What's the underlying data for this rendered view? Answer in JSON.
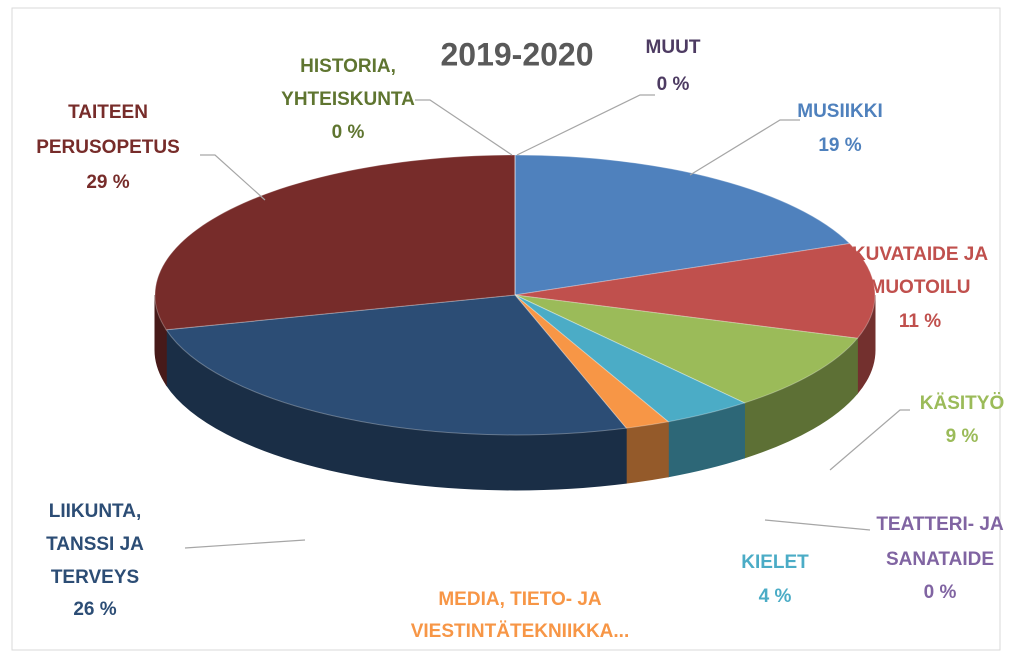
{
  "chart_data": {
    "type": "pie3d",
    "title": "2019-2020",
    "categories": [
      [
        "MUSIIKKI"
      ],
      [
        "KUVATAIDE JA",
        "MUOTOILU"
      ],
      [
        "KÄSITYÖ"
      ],
      [
        "TEATTERI- JA",
        "SANATAIDE"
      ],
      [
        "KIELET"
      ],
      [
        "MEDIA, TIETO- JA",
        "VIESTINTÄTEKNIIKKA..."
      ],
      [
        "LIIKUNTA,",
        "TANSSI JA",
        "TERVEYS"
      ],
      [
        "TAITEEN",
        "PERUSOPETUS"
      ],
      [
        "HISTORIA,",
        "YHTEISKUNTA"
      ],
      [
        "MUUT"
      ]
    ],
    "values": [
      19,
      11,
      9,
      0,
      4,
      2,
      26,
      29,
      0,
      0
    ],
    "value_labels": [
      "19 %",
      "11 %",
      "9 %",
      "0 %",
      "4 %",
      null,
      "26 %",
      "29 %",
      "0 %",
      "0 %"
    ],
    "colors": [
      "#4f81bd",
      "#c0504d",
      "#9bbb59",
      "#8064a2",
      "#4bacc6",
      "#f79646",
      "#2c4d75",
      "#772c2a",
      "#5f7530",
      "#4d3b62"
    ]
  }
}
